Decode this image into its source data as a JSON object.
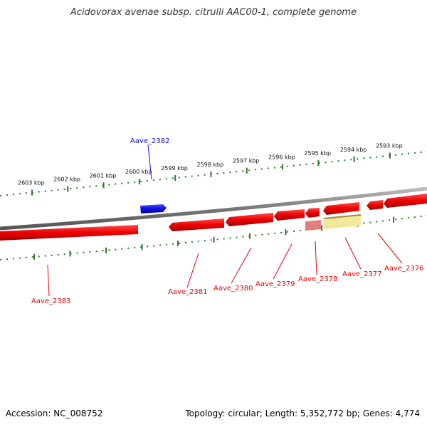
{
  "title": "Acidovorax avenae subsp. citrulli AAC00-1, complete genome",
  "footer": {
    "accession": "Accession: NC_008752",
    "stats": "Topology: circular; Length: 5,352,772 bp; Genes: 4,774"
  },
  "colors": {
    "forward_gene": "#1010e0",
    "reverse_gene": "#ee0000",
    "pseudo_gene": "#e07070",
    "other_feature": "#f2e79a",
    "ticks": "#2a7a2a",
    "backbone": "#888888"
  },
  "ticks": [
    {
      "label": "2603 kbp"
    },
    {
      "label": "2602 kbp"
    },
    {
      "label": "2601 kbp"
    },
    {
      "label": "2600 kbp"
    },
    {
      "label": "2599 kbp"
    },
    {
      "label": "2598 kbp"
    },
    {
      "label": "2597 kbp"
    },
    {
      "label": "2596 kbp"
    },
    {
      "label": "2595 kbp"
    },
    {
      "label": "2594 kbp"
    },
    {
      "label": "2593 kbp"
    }
  ],
  "genes": [
    {
      "name": "Aave_2382",
      "strand": "+"
    },
    {
      "name": "Aave_2383",
      "strand": "-"
    },
    {
      "name": "Aave_2381",
      "strand": "-"
    },
    {
      "name": "Aave_2380",
      "strand": "-"
    },
    {
      "name": "Aave_2379",
      "strand": "-"
    },
    {
      "name": "Aave_2378",
      "strand": "-"
    },
    {
      "name": "Aave_2377",
      "strand": "-"
    },
    {
      "name": "Aave_2376",
      "strand": "-"
    }
  ]
}
